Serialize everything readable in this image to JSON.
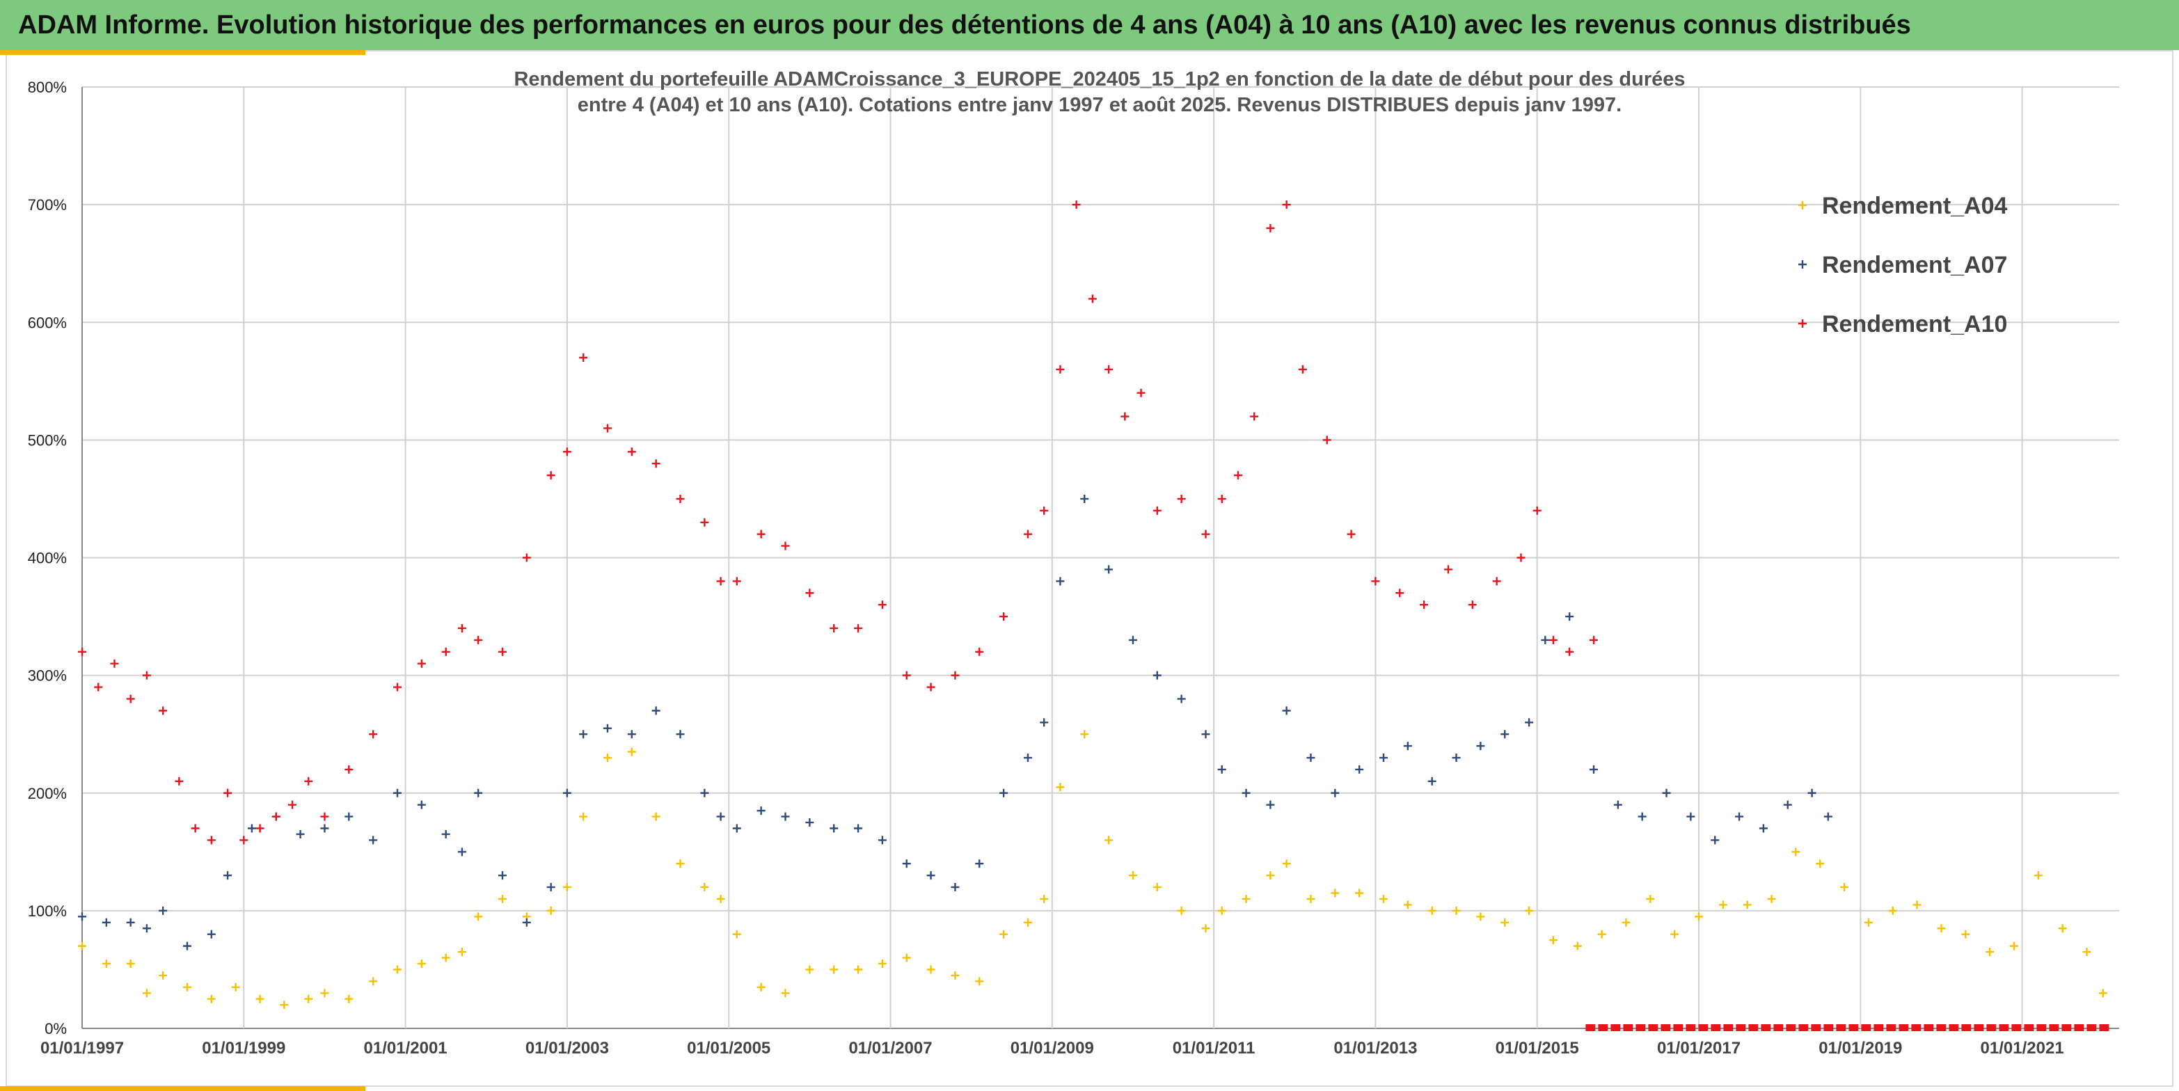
{
  "banner": {
    "title": "ADAM Informe. Evolution historique des performances en euros pour des détentions de 4 ans (A04) à 10 ans (A10) avec les revenus connus distribués"
  },
  "colors": {
    "banner_bg": "#7dc97d",
    "accent": "#f4b400",
    "A04": "#f5c000",
    "A07": "#2f4b7c",
    "A10": "#e8141c",
    "grid": "#d0d0d0"
  },
  "chart_data": {
    "type": "scatter",
    "title_lines": [
      "Rendement du portefeuille ADAMCroissance_3_EUROPE_202405_15_1p2  en fonction de la date de début pour des durées",
      "entre 4 (A04) et 10 ans (A10). Cotations entre janv 1997 et août 2025. Revenus DISTRIBUES depuis janv 1997."
    ],
    "xlim": [
      1997.0,
      2022.2
    ],
    "ylim": [
      0,
      800
    ],
    "grid": true,
    "legend_position": "top-right",
    "x_ticks": [
      {
        "x": 1997,
        "label": "01/01/1997"
      },
      {
        "x": 1999,
        "label": "01/01/1999"
      },
      {
        "x": 2001,
        "label": "01/01/2001"
      },
      {
        "x": 2003,
        "label": "01/01/2003"
      },
      {
        "x": 2005,
        "label": "01/01/2005"
      },
      {
        "x": 2007,
        "label": "01/01/2007"
      },
      {
        "x": 2009,
        "label": "01/01/2009"
      },
      {
        "x": 2011,
        "label": "01/01/2011"
      },
      {
        "x": 2013,
        "label": "01/01/2013"
      },
      {
        "x": 2015,
        "label": "01/01/2015"
      },
      {
        "x": 2017,
        "label": "01/01/2017"
      },
      {
        "x": 2019,
        "label": "01/01/2019"
      },
      {
        "x": 2021,
        "label": "01/01/2021"
      }
    ],
    "y_ticks": [
      {
        "y": 0,
        "label": "0%"
      },
      {
        "y": 100,
        "label": "100%"
      },
      {
        "y": 200,
        "label": "200%"
      },
      {
        "y": 300,
        "label": "300%"
      },
      {
        "y": 400,
        "label": "400%"
      },
      {
        "y": 500,
        "label": "500%"
      },
      {
        "y": 600,
        "label": "600%"
      },
      {
        "y": 700,
        "label": "700%"
      },
      {
        "y": 800,
        "label": "800%"
      }
    ],
    "series": [
      {
        "name": "Rendement_A04",
        "color": "#f5c000",
        "x": [
          1997.0,
          1997.3,
          1997.6,
          1997.8,
          1998.0,
          1998.3,
          1998.6,
          1998.9,
          1999.2,
          1999.5,
          1999.8,
          2000.0,
          2000.3,
          2000.6,
          2000.9,
          2001.2,
          2001.5,
          2001.7,
          2001.9,
          2002.2,
          2002.5,
          2002.8,
          2003.0,
          2003.2,
          2003.5,
          2003.8,
          2004.1,
          2004.4,
          2004.7,
          2004.9,
          2005.1,
          2005.4,
          2005.7,
          2006.0,
          2006.3,
          2006.6,
          2006.9,
          2007.2,
          2007.5,
          2007.8,
          2008.1,
          2008.4,
          2008.7,
          2008.9,
          2009.1,
          2009.4,
          2009.7,
          2010.0,
          2010.3,
          2010.6,
          2010.9,
          2011.1,
          2011.4,
          2011.7,
          2011.9,
          2012.2,
          2012.5,
          2012.8,
          2013.1,
          2013.4,
          2013.7,
          2014.0,
          2014.3,
          2014.6,
          2014.9,
          2015.2,
          2015.5,
          2015.8,
          2016.1,
          2016.4,
          2016.7,
          2017.0,
          2017.3,
          2017.6,
          2017.9,
          2018.2,
          2018.5,
          2018.8,
          2019.1,
          2019.4,
          2019.7,
          2020.0,
          2020.3,
          2020.6,
          2020.9,
          2021.2,
          2021.5,
          2021.8,
          2022.0
        ],
        "y": [
          70,
          55,
          55,
          30,
          45,
          35,
          25,
          35,
          25,
          20,
          25,
          30,
          25,
          40,
          50,
          55,
          60,
          65,
          95,
          110,
          95,
          100,
          120,
          180,
          230,
          235,
          180,
          140,
          120,
          110,
          80,
          35,
          30,
          50,
          50,
          50,
          55,
          60,
          50,
          45,
          40,
          80,
          90,
          110,
          205,
          250,
          160,
          130,
          120,
          100,
          85,
          100,
          110,
          130,
          140,
          110,
          115,
          115,
          110,
          105,
          100,
          100,
          95,
          90,
          100,
          75,
          70,
          80,
          90,
          110,
          80,
          95,
          105,
          105,
          110,
          150,
          140,
          120,
          90,
          100,
          105,
          85,
          80,
          65,
          70,
          130,
          85,
          65,
          30
        ]
      },
      {
        "name": "Rendement_A07",
        "color": "#2f4b7c",
        "x": [
          1997.0,
          1997.3,
          1997.6,
          1997.8,
          1998.0,
          1998.3,
          1998.6,
          1998.8,
          1999.1,
          1999.4,
          1999.7,
          2000.0,
          2000.3,
          2000.6,
          2000.9,
          2001.2,
          2001.5,
          2001.7,
          2001.9,
          2002.2,
          2002.5,
          2002.8,
          2003.0,
          2003.2,
          2003.5,
          2003.8,
          2004.1,
          2004.4,
          2004.7,
          2004.9,
          2005.1,
          2005.4,
          2005.7,
          2006.0,
          2006.3,
          2006.6,
          2006.9,
          2007.2,
          2007.5,
          2007.8,
          2008.1,
          2008.4,
          2008.7,
          2008.9,
          2009.1,
          2009.4,
          2009.7,
          2010.0,
          2010.3,
          2010.6,
          2010.9,
          2011.1,
          2011.4,
          2011.7,
          2011.9,
          2012.2,
          2012.5,
          2012.8,
          2013.1,
          2013.4,
          2013.7,
          2014.0,
          2014.3,
          2014.6,
          2014.9,
          2015.1,
          2015.4,
          2015.7,
          2016.0,
          2016.3,
          2016.6,
          2016.9,
          2017.2,
          2017.5,
          2017.8,
          2018.1,
          2018.4,
          2018.6
        ],
        "y": [
          95,
          90,
          90,
          85,
          100,
          70,
          80,
          130,
          170,
          180,
          165,
          170,
          180,
          160,
          200,
          190,
          165,
          150,
          200,
          130,
          90,
          120,
          200,
          250,
          255,
          250,
          270,
          250,
          200,
          180,
          170,
          185,
          180,
          175,
          170,
          170,
          160,
          140,
          130,
          120,
          140,
          200,
          230,
          260,
          380,
          450,
          390,
          330,
          300,
          280,
          250,
          220,
          200,
          190,
          270,
          230,
          200,
          220,
          230,
          240,
          210,
          230,
          240,
          250,
          260,
          330,
          350,
          220,
          190,
          180,
          200,
          180,
          160,
          180,
          170,
          190,
          200,
          180
        ]
      },
      {
        "name": "Rendement_A10",
        "color": "#e8141c",
        "x": [
          1997.0,
          1997.2,
          1997.4,
          1997.6,
          1997.8,
          1998.0,
          1998.2,
          1998.4,
          1998.6,
          1998.8,
          1999.0,
          1999.2,
          1999.4,
          1999.6,
          1999.8,
          2000.0,
          2000.3,
          2000.6,
          2000.9,
          2001.2,
          2001.5,
          2001.7,
          2001.9,
          2002.2,
          2002.5,
          2002.8,
          2003.0,
          2003.2,
          2003.5,
          2003.8,
          2004.1,
          2004.4,
          2004.7,
          2004.9,
          2005.1,
          2005.4,
          2005.7,
          2006.0,
          2006.3,
          2006.6,
          2006.9,
          2007.2,
          2007.5,
          2007.8,
          2008.1,
          2008.4,
          2008.7,
          2008.9,
          2009.1,
          2009.3,
          2009.5,
          2009.7,
          2009.9,
          2010.1,
          2010.3,
          2010.6,
          2010.9,
          2011.1,
          2011.3,
          2011.5,
          2011.7,
          2011.9,
          2012.1,
          2012.4,
          2012.7,
          2013.0,
          2013.3,
          2013.6,
          2013.9,
          2014.2,
          2014.5,
          2014.8,
          2015.0,
          2015.2,
          2015.4,
          2015.7
        ],
        "y": [
          320,
          290,
          310,
          280,
          300,
          270,
          210,
          170,
          160,
          200,
          160,
          170,
          180,
          190,
          210,
          180,
          220,
          250,
          290,
          310,
          320,
          340,
          330,
          320,
          400,
          470,
          490,
          570,
          510,
          490,
          480,
          450,
          430,
          380,
          380,
          420,
          410,
          370,
          340,
          340,
          360,
          300,
          290,
          300,
          320,
          350,
          420,
          440,
          560,
          700,
          620,
          560,
          520,
          540,
          440,
          450,
          420,
          450,
          470,
          520,
          680,
          700,
          560,
          500,
          420,
          380,
          370,
          360,
          390,
          360,
          380,
          400,
          440,
          330,
          320,
          330
        ]
      }
    ],
    "annotation_segment": {
      "x_start": 2015.6,
      "x_end": 2022.1,
      "y": 0,
      "color": "#e8141c"
    }
  }
}
